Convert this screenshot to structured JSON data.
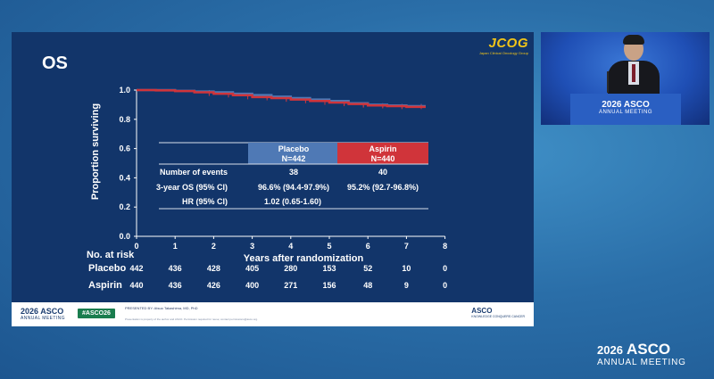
{
  "slide": {
    "title": "OS",
    "logo": {
      "text": "JCOG",
      "subtitle": "Japan Clinical Oncology Group",
      "color": "#f0c419"
    }
  },
  "chart_data": {
    "type": "line",
    "title": "OS",
    "xlabel": "Years after randomization",
    "ylabel": "Proportion surviving",
    "xlim": [
      0,
      8
    ],
    "ylim": [
      0.0,
      1.0
    ],
    "xticks": [
      "0",
      "1",
      "2",
      "3",
      "4",
      "5",
      "6",
      "7",
      "8"
    ],
    "yticks": [
      "0.0",
      "0.2",
      "0.4",
      "0.6",
      "0.8",
      "1.0"
    ],
    "series": [
      {
        "name": "Placebo",
        "color": "#4f79b5",
        "x": [
          0,
          0.5,
          1.0,
          1.5,
          2.0,
          2.5,
          3.0,
          3.5,
          4.0,
          4.5,
          5.0,
          5.5,
          6.0,
          6.5,
          7.0,
          7.5
        ],
        "y": [
          1.0,
          1.0,
          0.995,
          0.99,
          0.985,
          0.975,
          0.966,
          0.955,
          0.945,
          0.935,
          0.925,
          0.91,
          0.9,
          0.895,
          0.89,
          0.89
        ]
      },
      {
        "name": "Aspirin",
        "color": "#d0343a",
        "x": [
          0,
          0.5,
          1.0,
          1.5,
          2.0,
          2.5,
          3.0,
          3.5,
          4.0,
          4.5,
          5.0,
          5.5,
          6.0,
          6.5,
          7.0,
          7.5
        ],
        "y": [
          1.0,
          0.998,
          0.993,
          0.985,
          0.975,
          0.965,
          0.952,
          0.945,
          0.935,
          0.925,
          0.915,
          0.905,
          0.895,
          0.89,
          0.885,
          0.885
        ]
      }
    ],
    "summary_table": {
      "columns": [
        {
          "name": "Placebo",
          "n": "N=442",
          "color": "#4f79b5"
        },
        {
          "name": "Aspirin",
          "n": "N=440",
          "color": "#d0343a"
        }
      ],
      "rows": [
        {
          "label": "Number of events",
          "values": [
            "38",
            "40"
          ]
        },
        {
          "label": "3-year OS  (95% CI)",
          "values": [
            "96.6% (94.4-97.9%)",
            "95.2% (92.7-96.8%)"
          ]
        },
        {
          "label": "HR (95% CI)",
          "merged": "1.02 (0.65-1.60)"
        }
      ]
    },
    "at_risk": {
      "title": "No. at risk",
      "rows": [
        {
          "label": "Placebo",
          "values": [
            "442",
            "436",
            "428",
            "405",
            "280",
            "153",
            "52",
            "10",
            "0"
          ]
        },
        {
          "label": "Aspirin",
          "values": [
            "440",
            "436",
            "426",
            "400",
            "271",
            "156",
            "48",
            "9",
            "0"
          ]
        }
      ]
    },
    "grid": false
  },
  "footer": {
    "asco_logo": "2026 ASCO",
    "asco_sub": "ANNUAL MEETING",
    "hashtag": "#ASCO26",
    "presenter": "PRESENTED BY:  Atsuo Takashima, MD, PhD",
    "permission": "Presentation is property of the author and ASCO. Permission required for reuse; contact permissions@asco.org.",
    "asco_cc": "ASCO",
    "asco_cc_sub": "KNOWLEDGE CONQUERS CANCER"
  },
  "video": {
    "podium_line1": "2026 ASCO",
    "podium_line2": "ANNUAL MEETING"
  },
  "brand": {
    "year": "2026",
    "name": "ASCO",
    "sub": "ANNUAL MEETING"
  }
}
